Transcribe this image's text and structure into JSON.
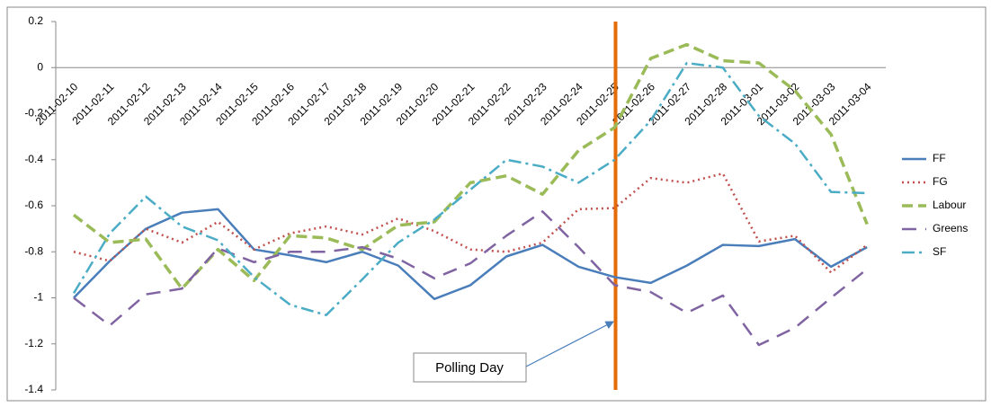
{
  "chart_data": {
    "type": "line",
    "categories": [
      "2011-02-10",
      "2011-02-11",
      "2011-02-12",
      "2011-02-13",
      "2011-02-14",
      "2011-02-15",
      "2011-02-16",
      "2011-02-17",
      "2011-02-18",
      "2011-02-19",
      "2011-02-20",
      "2011-02-21",
      "2011-02-22",
      "2011-02-23",
      "2011-02-24",
      "2011-02-25",
      "2011-02-26",
      "2011-02-27",
      "2011-02-28",
      "2011-03-01",
      "2011-03-02",
      "2011-03-03",
      "2011-03-04"
    ],
    "series": [
      {
        "name": "FF",
        "color": "#4a7ebb",
        "style": "solid",
        "values": [
          -1.0,
          -0.84,
          -0.7,
          -0.63,
          -0.615,
          -0.79,
          -0.815,
          -0.845,
          -0.8,
          -0.86,
          -1.005,
          -0.945,
          -0.82,
          -0.77,
          -0.865,
          -0.91,
          -0.935,
          -0.86,
          -0.77,
          -0.775,
          -0.745,
          -0.865,
          -0.78
        ]
      },
      {
        "name": "FG",
        "color": "#c0504d",
        "style": "dotted",
        "values": [
          -0.8,
          -0.84,
          -0.7,
          -0.76,
          -0.67,
          -0.79,
          -0.72,
          -0.69,
          -0.725,
          -0.655,
          -0.71,
          -0.79,
          -0.8,
          -0.76,
          -0.615,
          -0.61,
          -0.48,
          -0.5,
          -0.46,
          -0.755,
          -0.73,
          -0.89,
          -0.77
        ]
      },
      {
        "name": "Labour",
        "color": "#9bbb59",
        "style": "dashed",
        "values": [
          -0.64,
          -0.76,
          -0.745,
          -0.96,
          -0.79,
          -0.925,
          -0.73,
          -0.74,
          -0.79,
          -0.685,
          -0.67,
          -0.5,
          -0.47,
          -0.55,
          -0.36,
          -0.26,
          0.04,
          0.1,
          0.03,
          0.02,
          -0.1,
          -0.29,
          -0.68
        ]
      },
      {
        "name": "Greens",
        "color": "#8064a2",
        "style": "longdash",
        "values": [
          -1.0,
          -1.12,
          -0.985,
          -0.96,
          -0.785,
          -0.845,
          -0.8,
          -0.8,
          -0.78,
          -0.83,
          -0.915,
          -0.85,
          -0.73,
          -0.625,
          -0.78,
          -0.945,
          -0.975,
          -1.065,
          -0.99,
          -1.205,
          -1.13,
          -1.0,
          -0.875
        ]
      },
      {
        "name": "SF",
        "color": "#4bacc6",
        "style": "dashdot",
        "values": [
          -0.98,
          -0.72,
          -0.56,
          -0.69,
          -0.75,
          -0.91,
          -1.03,
          -1.075,
          -0.92,
          -0.76,
          -0.66,
          -0.53,
          -0.4,
          -0.43,
          -0.5,
          -0.4,
          -0.23,
          0.02,
          0.0,
          -0.21,
          -0.33,
          -0.54,
          -0.545
        ]
      }
    ],
    "ylim": [
      -1.4,
      0.2
    ],
    "yticks": [
      0.2,
      0,
      -0.2,
      -0.4,
      -0.6,
      -0.8,
      -1,
      -1.2,
      -1.4
    ],
    "grid": false,
    "legend": "right",
    "marker_line": {
      "category": "2011-02-25",
      "color": "#e36c09"
    },
    "annotation": "Polling Day"
  }
}
